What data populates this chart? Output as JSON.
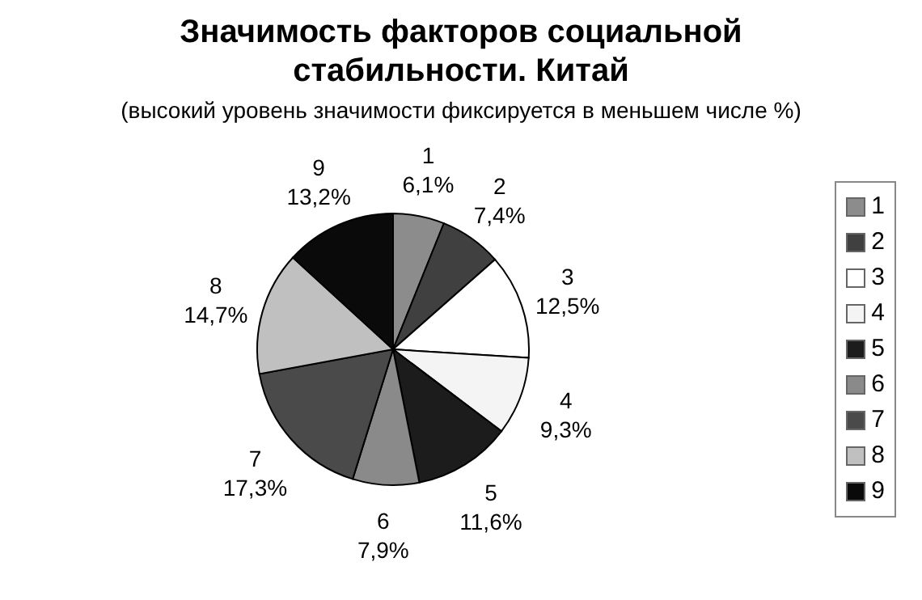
{
  "chart_data": {
    "type": "pie",
    "title": "Значимость факторов социальной стабильности. Китай",
    "subtitle": "(высокий уровень значимости фиксируется в меньшем числе %)",
    "categories": [
      "1",
      "2",
      "3",
      "4",
      "5",
      "6",
      "7",
      "8",
      "9"
    ],
    "values": [
      6.1,
      7.4,
      12.5,
      9.3,
      11.6,
      7.9,
      17.3,
      14.7,
      13.2
    ],
    "value_labels": [
      "6,1%",
      "7,4%",
      "12,5%",
      "9,3%",
      "11,6%",
      "7,9%",
      "17,3%",
      "14,7%",
      "13,2%"
    ],
    "colors": [
      "#8c8c8c",
      "#404040",
      "#ffffff",
      "#f4f4f4",
      "#1c1c1c",
      "#8a8a8a",
      "#4a4a4a",
      "#c0c0c0",
      "#0a0a0a"
    ],
    "legend": "right"
  }
}
